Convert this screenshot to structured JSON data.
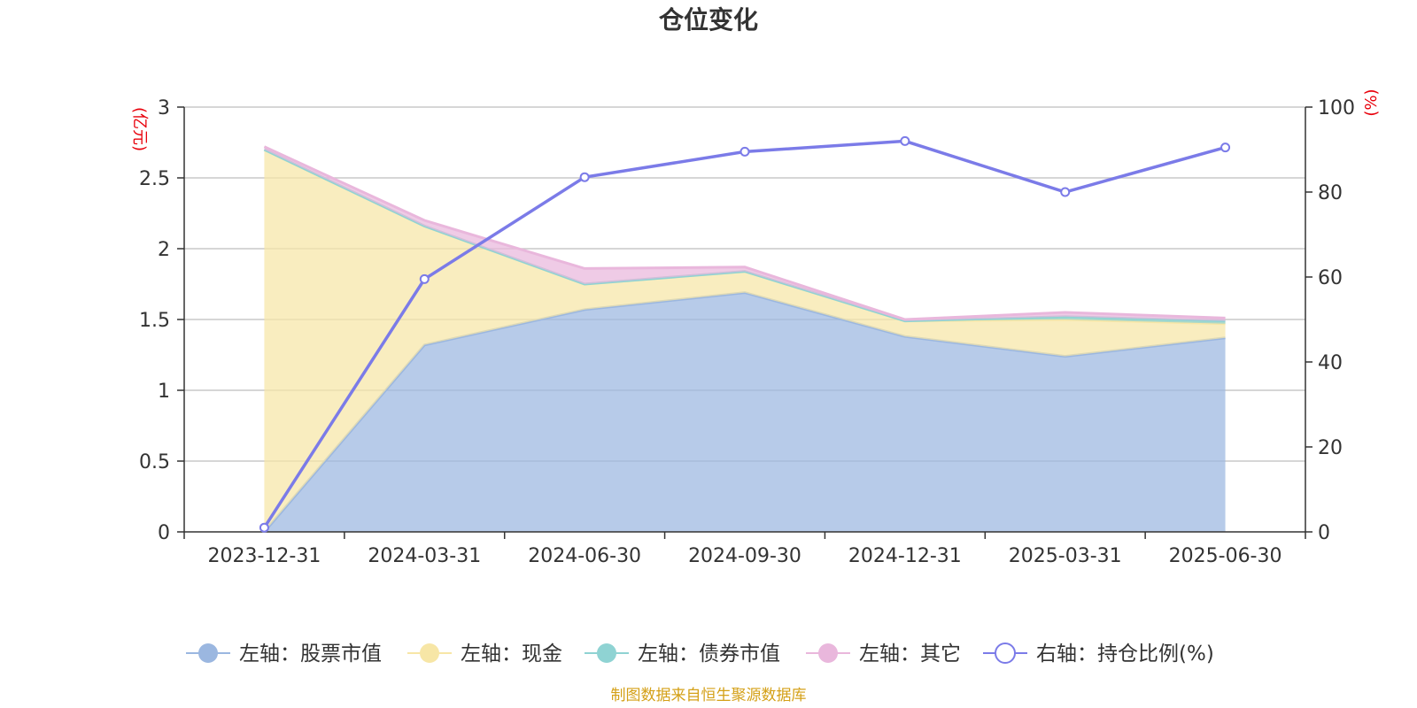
{
  "chart_data": {
    "type": "area",
    "title": "仓位变化",
    "left_axis_unit": "(亿元)",
    "right_axis_unit": "(%)",
    "categories": [
      "2023-12-31",
      "2024-03-31",
      "2024-06-30",
      "2024-09-30",
      "2024-12-31",
      "2025-03-31",
      "2025-06-30"
    ],
    "left_ylim": [
      0,
      3
    ],
    "left_yticks": [
      "0",
      "0.5",
      "1",
      "1.5",
      "2",
      "2.5",
      "3"
    ],
    "right_ylim": [
      0,
      100
    ],
    "right_yticks": [
      "0",
      "20",
      "40",
      "60",
      "80",
      "100"
    ],
    "grid": true,
    "legend_position": "bottom",
    "series": [
      {
        "name": "左轴：股票市值",
        "axis": "left",
        "kind": "stacked-area",
        "color": "#9bb7e0",
        "values": [
          0.0,
          1.32,
          1.57,
          1.69,
          1.38,
          1.24,
          1.37
        ]
      },
      {
        "name": "左轴：现金",
        "axis": "left",
        "kind": "stacked-area",
        "color": "#f7e6a6",
        "values": [
          2.7,
          0.84,
          0.18,
          0.15,
          0.11,
          0.26,
          0.1
        ]
      },
      {
        "name": "左轴：债券市值",
        "axis": "left",
        "kind": "stacked-area",
        "color": "#8fd3d3",
        "values": [
          0.0,
          0.0,
          0.0,
          0.0,
          0.0,
          0.02,
          0.02
        ]
      },
      {
        "name": "左轴：其它",
        "axis": "left",
        "kind": "stacked-area",
        "color": "#e9b7dc",
        "values": [
          0.02,
          0.04,
          0.11,
          0.03,
          0.01,
          0.03,
          0.02
        ]
      },
      {
        "name": "右轴：持仓比例(%)",
        "axis": "right",
        "kind": "line",
        "color": "#7b7be8",
        "values": [
          1,
          59.5,
          83.5,
          89.5,
          92,
          80,
          90.5
        ]
      }
    ],
    "source_note": "制图数据来自恒生聚源数据库"
  }
}
